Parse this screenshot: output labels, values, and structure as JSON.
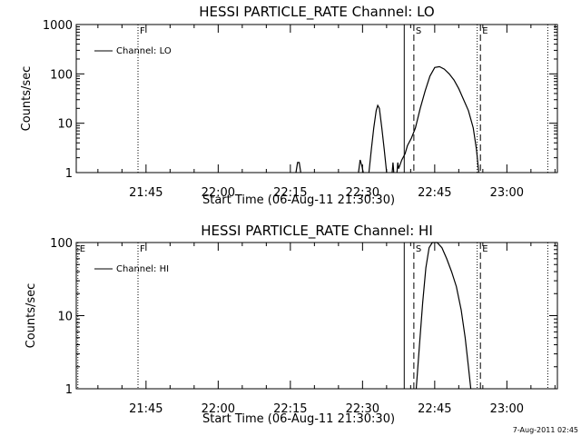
{
  "footer_timestamp": "7-Aug-2011 02:45",
  "chart_data": [
    {
      "type": "line",
      "title": "HESSI PARTICLE_RATE Channel: LO",
      "xlabel": "Start Time (06-Aug-11 21:30:30)",
      "ylabel": "Counts/sec",
      "y_scale": "log",
      "ylim": [
        1,
        1000
      ],
      "y_ticks": [
        "1",
        "10",
        "100",
        "1000"
      ],
      "xlim": [
        "21:30:30",
        "23:10:30"
      ],
      "x_ticks": [
        "21:45",
        "22:00",
        "22:15",
        "22:30",
        "22:45",
        "23:00"
      ],
      "legend": {
        "entries": [
          "Channel: LO"
        ],
        "placement": "top-left"
      },
      "markers": [
        {
          "label": "F",
          "time": "21:43:20",
          "style": "dotted"
        },
        {
          "label": "",
          "time": "22:38:40",
          "style": "solid"
        },
        {
          "label": "S",
          "time": "22:40:40",
          "style": "dashed"
        },
        {
          "label": "E",
          "time": "22:54:30",
          "style": "dashed"
        },
        {
          "label": "",
          "time": "22:53:50",
          "style": "dotted"
        },
        {
          "label": "",
          "time": "23:08:30",
          "style": "dotted"
        }
      ],
      "series": [
        {
          "name": "Channel: LO",
          "segments": [
            [
              [
                "22:16:10",
                1
              ],
              [
                "22:16:30",
                1.6
              ],
              [
                "22:16:50",
                1.6
              ],
              [
                "22:17:10",
                1
              ]
            ],
            [
              [
                "22:29:10",
                1
              ],
              [
                "22:29:30",
                1.8
              ],
              [
                "22:29:50",
                1.4
              ],
              [
                "22:30:10",
                1
              ]
            ],
            [
              [
                "22:31:20",
                1
              ],
              [
                "22:31:50",
                3
              ],
              [
                "22:32:20",
                8
              ],
              [
                "22:32:50",
                18
              ],
              [
                "22:33:10",
                23
              ],
              [
                "22:33:30",
                20
              ],
              [
                "22:34:00",
                8
              ],
              [
                "22:34:30",
                3
              ],
              [
                "22:35:00",
                1
              ]
            ],
            [
              [
                "22:36:10",
                1
              ],
              [
                "22:36:20",
                1.6
              ],
              [
                "22:36:30",
                1
              ]
            ],
            [
              [
                "22:37:10",
                1
              ],
              [
                "22:37:20",
                1.6
              ],
              [
                "22:37:30",
                1.2
              ],
              [
                "22:38:10",
                1.8
              ],
              [
                "22:38:50",
                2.4
              ],
              [
                "22:39:20",
                3.5
              ],
              [
                "22:40:10",
                5
              ],
              [
                "22:41:00",
                8
              ],
              [
                "22:42:00",
                20
              ],
              [
                "22:43:00",
                45
              ],
              [
                "22:44:00",
                90
              ],
              [
                "22:45:00",
                135
              ],
              [
                "22:46:00",
                140
              ],
              [
                "22:47:00",
                125
              ],
              [
                "22:48:00",
                100
              ],
              [
                "22:49:00",
                75
              ],
              [
                "22:50:00",
                50
              ],
              [
                "22:51:00",
                30
              ],
              [
                "22:52:00",
                18
              ],
              [
                "22:53:00",
                8
              ],
              [
                "22:53:40",
                3
              ],
              [
                "22:54:10",
                1
              ]
            ]
          ]
        }
      ]
    },
    {
      "type": "line",
      "title": "HESSI PARTICLE_RATE Channel: HI",
      "xlabel": "Start Time (06-Aug-11 21:30:30)",
      "ylabel": "Counts/sec",
      "y_scale": "log",
      "ylim": [
        1,
        100
      ],
      "y_ticks": [
        "1",
        "10",
        "100"
      ],
      "xlim": [
        "21:30:30",
        "23:10:30"
      ],
      "x_ticks": [
        "21:45",
        "22:00",
        "22:15",
        "22:30",
        "22:45",
        "23:00"
      ],
      "legend": {
        "entries": [
          "Channel: HI"
        ],
        "placement": "top-left"
      },
      "markers": [
        {
          "label": "E",
          "time": "21:30:50",
          "style": "dotted"
        },
        {
          "label": "F",
          "time": "21:43:20",
          "style": "dotted"
        },
        {
          "label": "",
          "time": "22:38:40",
          "style": "solid"
        },
        {
          "label": "S",
          "time": "22:40:40",
          "style": "dashed"
        },
        {
          "label": "E",
          "time": "22:54:30",
          "style": "dashed"
        },
        {
          "label": "",
          "time": "22:53:50",
          "style": "dotted"
        },
        {
          "label": "",
          "time": "23:08:30",
          "style": "dotted"
        }
      ],
      "series": [
        {
          "name": "Channel: HI",
          "segments": [
            [
              [
                "22:41:10",
                1
              ],
              [
                "22:41:50",
                4
              ],
              [
                "22:42:30",
                15
              ],
              [
                "22:43:10",
                45
              ],
              [
                "22:43:50",
                85
              ],
              [
                "22:44:30",
                100
              ],
              [
                "22:45:30",
                100
              ],
              [
                "22:46:30",
                85
              ],
              [
                "22:47:30",
                60
              ],
              [
                "22:48:30",
                40
              ],
              [
                "22:49:30",
                25
              ],
              [
                "22:50:30",
                12
              ],
              [
                "22:51:20",
                5
              ],
              [
                "22:52:00",
                2
              ],
              [
                "22:52:30",
                1
              ]
            ]
          ]
        }
      ]
    }
  ]
}
